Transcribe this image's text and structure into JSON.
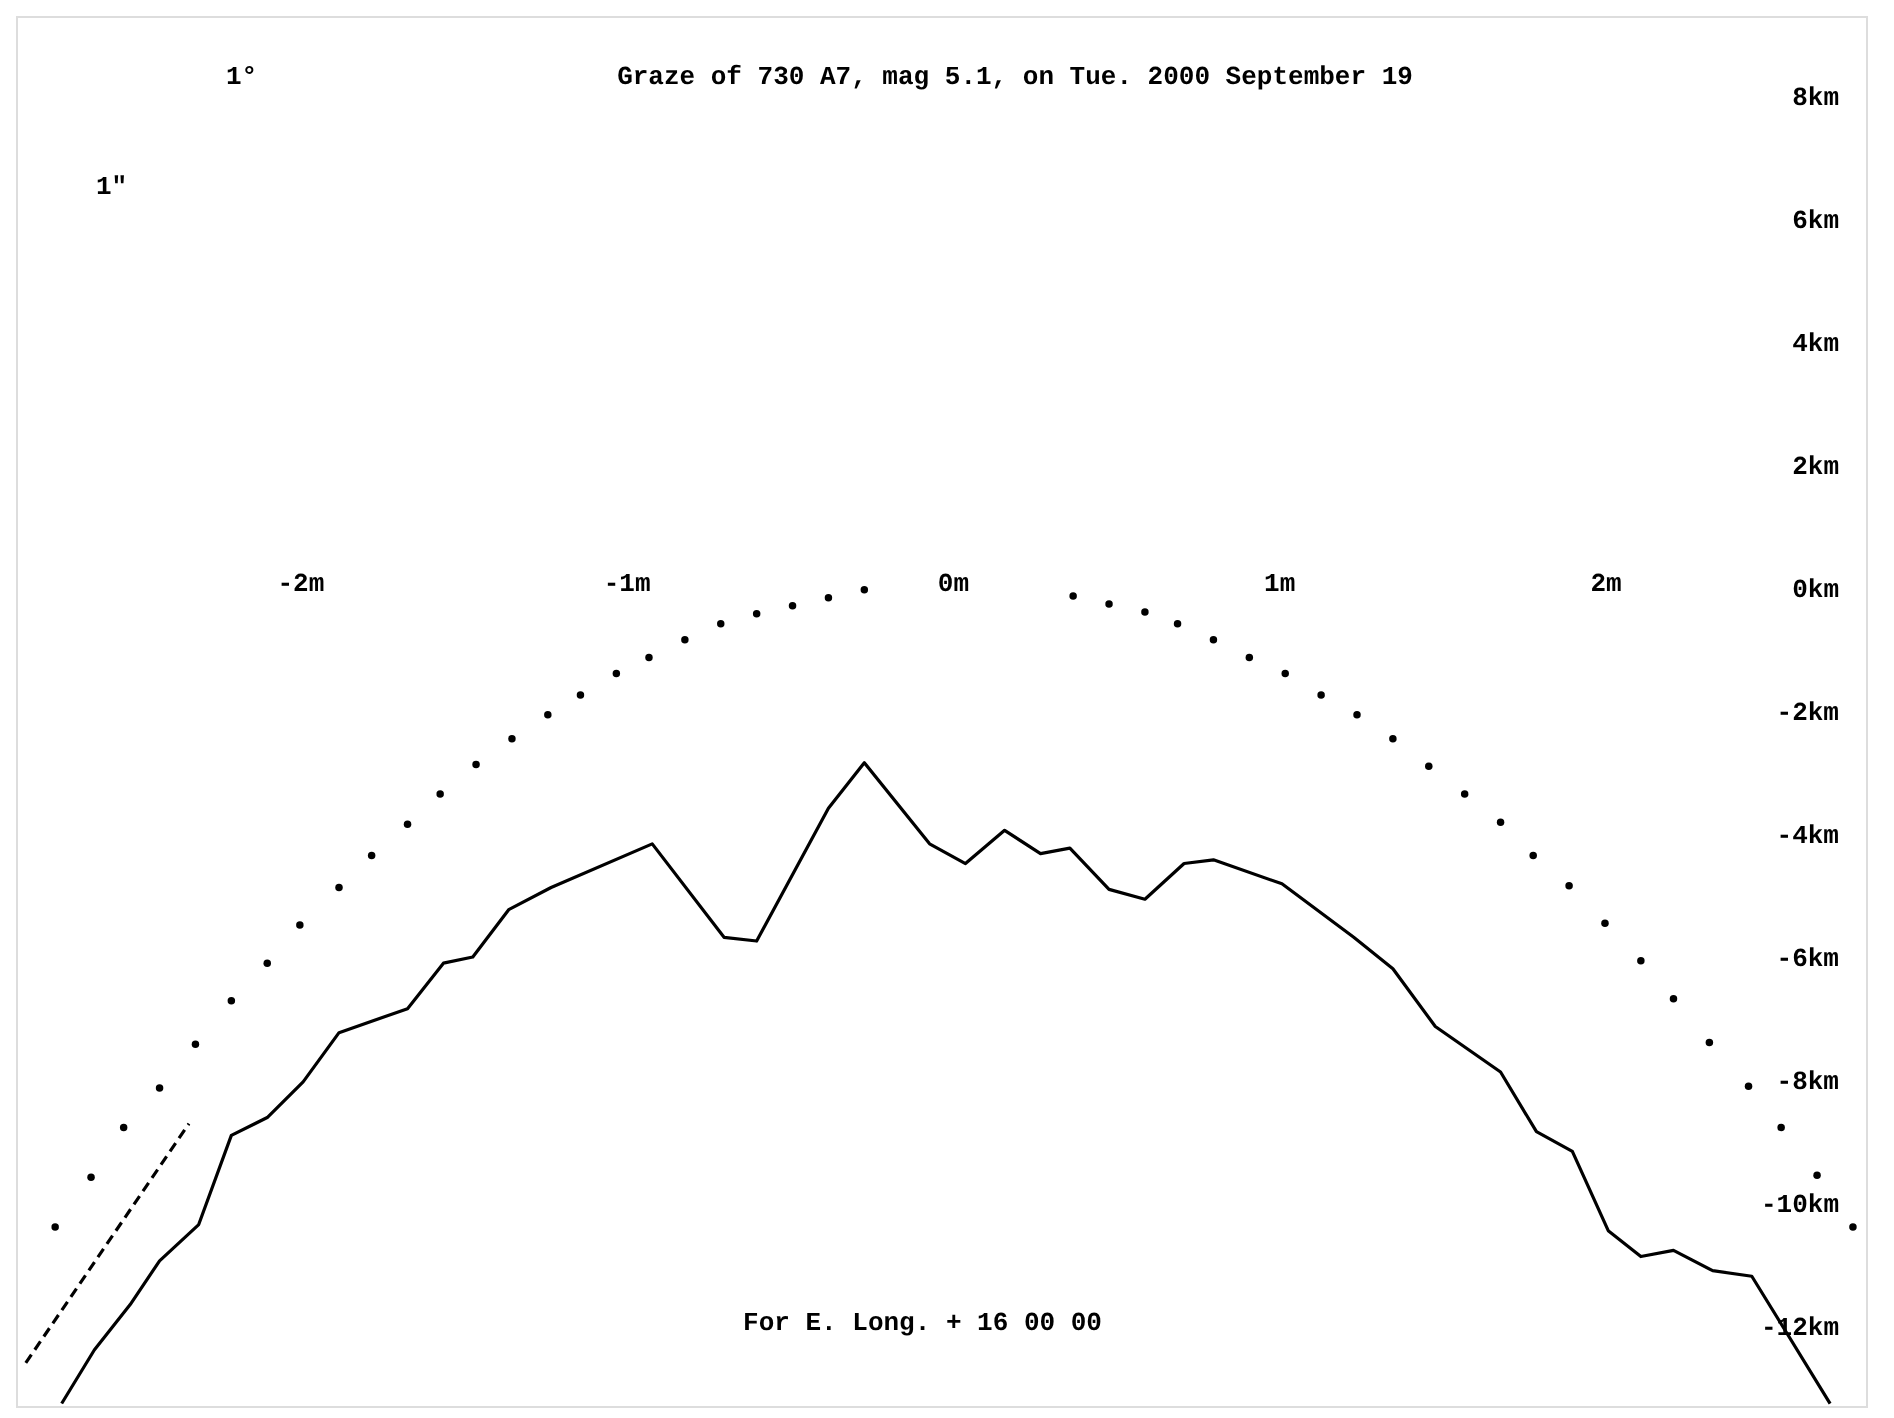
{
  "chart_data": {
    "type": "line",
    "title": "Graze of    730   A7, mag  5.1, on Tue. 2000 September 19",
    "annotations": [
      "For E. Long. + 16 00 00",
      "1°",
      "1\""
    ],
    "xlim": [
      -2.87,
      2.8
    ],
    "xticks": [
      {
        "value": -2,
        "label": "-2m"
      },
      {
        "value": -1,
        "label": "-1m"
      },
      {
        "value": 0,
        "label": "0m"
      },
      {
        "value": 1,
        "label": "1m"
      },
      {
        "value": 2,
        "label": "2m"
      }
    ],
    "ylim": [
      -13.3,
      9.3
    ],
    "yticks": [
      {
        "value": 8,
        "label": "8km"
      },
      {
        "value": 6,
        "label": "6km"
      },
      {
        "value": 4,
        "label": "4km"
      },
      {
        "value": 2,
        "label": "2km"
      },
      {
        "value": 0,
        "label": "0km"
      },
      {
        "value": -2,
        "label": "-2km"
      },
      {
        "value": -4,
        "label": "-4km"
      },
      {
        "value": -6,
        "label": "-6km"
      },
      {
        "value": -8,
        "label": "-8km"
      },
      {
        "value": -10,
        "label": "-10km"
      },
      {
        "value": -12,
        "label": "-12km"
      }
    ],
    "grid": false,
    "series": [
      {
        "line_style": "solid",
        "marker": "none",
        "color": "#000000",
        "x": [
          -2.73,
          -2.63,
          -2.52,
          -2.43,
          -2.31,
          -2.21,
          -2.1,
          -1.99,
          -1.88,
          -1.67,
          -1.56,
          -1.47,
          -1.36,
          -1.23,
          -0.92,
          -0.7,
          -0.6,
          -0.38,
          -0.27,
          -0.07,
          0.04,
          0.16,
          0.27,
          0.36,
          0.48,
          0.59,
          0.71,
          0.8,
          1.01,
          1.23,
          1.35,
          1.48,
          1.68,
          1.79,
          1.9,
          2.01,
          2.11,
          2.21,
          2.33,
          2.45,
          2.69
        ],
        "values": [
          -13.26,
          -12.39,
          -11.65,
          -10.94,
          -10.35,
          -8.9,
          -8.61,
          -8.03,
          -7.23,
          -6.84,
          -6.1,
          -6.0,
          -5.23,
          -4.87,
          -4.16,
          -5.68,
          -5.74,
          -3.58,
          -2.84,
          -4.16,
          -4.48,
          -3.94,
          -4.32,
          -4.23,
          -4.9,
          -5.06,
          -4.48,
          -4.42,
          -4.81,
          -5.68,
          -6.19,
          -7.13,
          -7.87,
          -8.84,
          -9.16,
          -10.45,
          -10.87,
          -10.77,
          -11.1,
          -11.19,
          -13.26
        ]
      },
      {
        "type": "scatter",
        "marker": "circle",
        "color": "#000000",
        "x": [
          -2.75,
          -2.64,
          -2.54,
          -2.43,
          -2.32,
          -2.21,
          -2.1,
          -2.0,
          -1.88,
          -1.78,
          -1.67,
          -1.57,
          -1.46,
          -1.35,
          -1.24,
          -1.14,
          -1.03,
          -0.93,
          -0.82,
          -0.71,
          -0.6,
          -0.49,
          -0.38,
          -0.27,
          0.37,
          0.48,
          0.59,
          0.69,
          0.8,
          0.91,
          1.02,
          1.13,
          1.24,
          1.35,
          1.46,
          1.57,
          1.68,
          1.78,
          1.89,
          2.0,
          2.11,
          2.21,
          2.32,
          2.44,
          2.54,
          2.65,
          2.76
        ],
        "values": [
          -10.39,
          -9.58,
          -8.77,
          -8.13,
          -7.42,
          -6.71,
          -6.1,
          -5.48,
          -4.87,
          -4.35,
          -3.84,
          -3.35,
          -2.87,
          -2.45,
          -2.06,
          -1.74,
          -1.39,
          -1.13,
          -0.84,
          -0.58,
          -0.42,
          -0.29,
          -0.16,
          -0.03,
          -0.13,
          -0.26,
          -0.39,
          -0.58,
          -0.84,
          -1.13,
          -1.39,
          -1.74,
          -2.06,
          -2.45,
          -2.9,
          -3.35,
          -3.81,
          -4.35,
          -4.84,
          -5.45,
          -6.06,
          -6.68,
          -7.39,
          -8.1,
          -8.77,
          -9.55,
          -10.39
        ]
      },
      {
        "line_style": "dashed",
        "marker": "none",
        "color": "#000000",
        "x": [
          -2.84,
          -2.34
        ],
        "values": [
          -12.6,
          -8.71
        ]
      }
    ]
  }
}
